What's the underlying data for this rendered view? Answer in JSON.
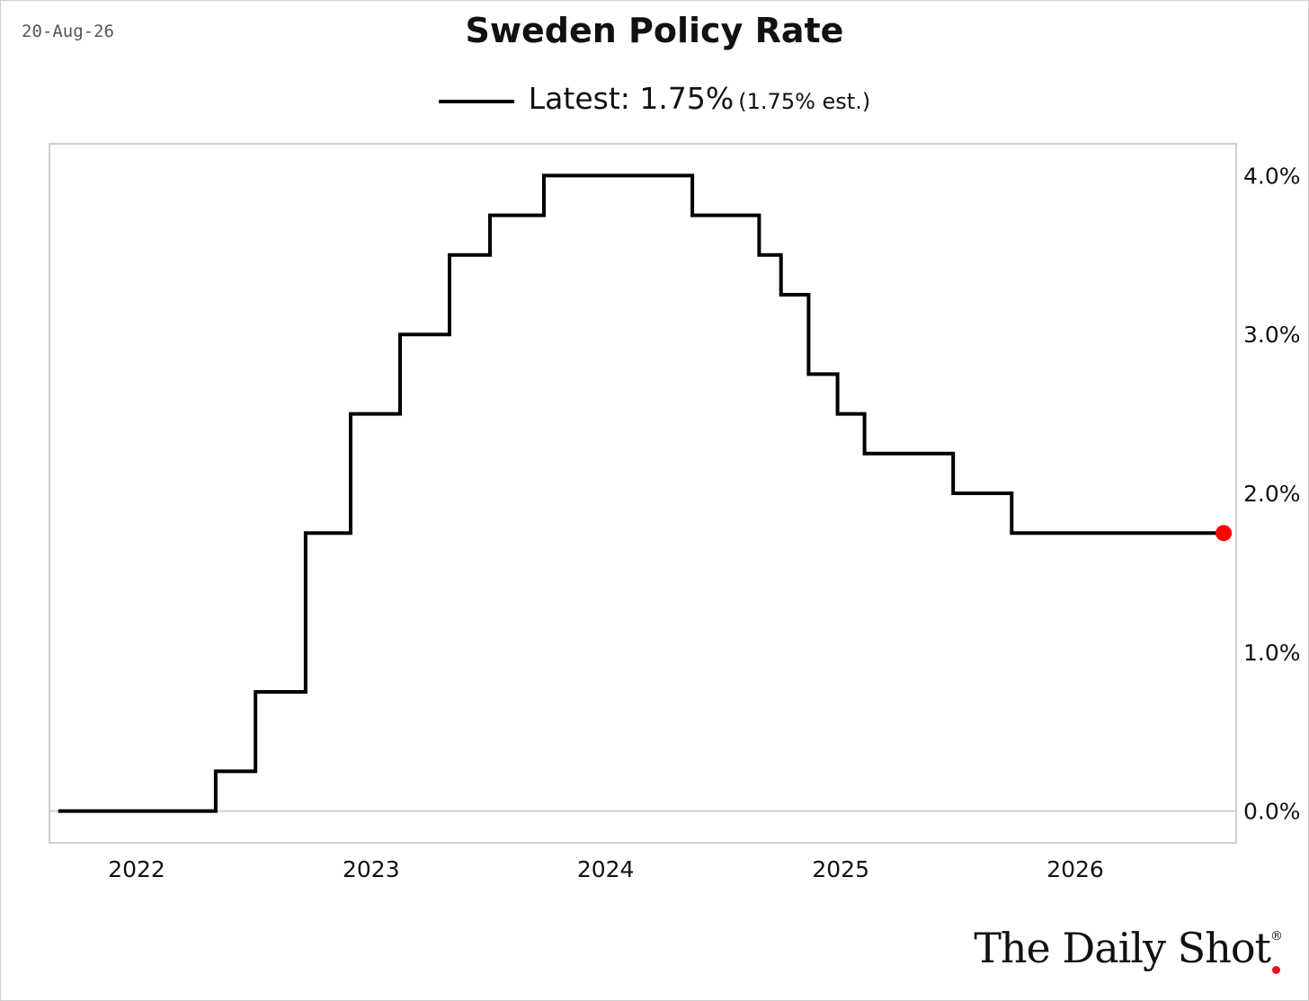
{
  "header": {
    "date": "20-Aug-26",
    "title": "Sweden Policy Rate"
  },
  "legend": {
    "label": "Latest: 1.75%",
    "estimate": "(1.75% est.)"
  },
  "branding": {
    "logo_text": "The Daily Shot",
    "registered_mark": "®"
  },
  "colors": {
    "line": "#000000",
    "latest_marker": "#ff0000",
    "zero_line": "#cfcfcf",
    "plot_border": "#cfcfcf",
    "logo_dot": "#e8141b"
  },
  "chart_data": {
    "type": "line",
    "step": true,
    "title": "Sweden Policy Rate",
    "xlabel": "",
    "ylabel": "",
    "y_axis_position": "right",
    "x_range": [
      "2021-09-01",
      "2026-09-15"
    ],
    "ylim": [
      -0.2,
      4.2
    ],
    "x_ticks": [
      {
        "label": "2022",
        "date": "2022-01-01"
      },
      {
        "label": "2023",
        "date": "2023-01-01"
      },
      {
        "label": "2024",
        "date": "2024-01-01"
      },
      {
        "label": "2025",
        "date": "2025-01-01"
      },
      {
        "label": "2026",
        "date": "2026-01-01"
      }
    ],
    "y_ticks": [
      {
        "label": "0.0%",
        "value": 0
      },
      {
        "label": "1.0%",
        "value": 1
      },
      {
        "label": "2.0%",
        "value": 2
      },
      {
        "label": "3.0%",
        "value": 3
      },
      {
        "label": "4.0%",
        "value": 4
      }
    ],
    "series": [
      {
        "step_points": [
          {
            "date": "2021-09-01",
            "value": 0.0
          },
          {
            "date": "2022-05-04",
            "value": 0.25
          },
          {
            "date": "2022-07-05",
            "value": 0.75
          },
          {
            "date": "2022-09-21",
            "value": 1.75
          },
          {
            "date": "2022-11-30",
            "value": 2.5
          },
          {
            "date": "2023-02-15",
            "value": 3.0
          },
          {
            "date": "2023-05-03",
            "value": 3.5
          },
          {
            "date": "2023-07-05",
            "value": 3.75
          },
          {
            "date": "2023-09-27",
            "value": 4.0
          },
          {
            "date": "2024-05-15",
            "value": 3.75
          },
          {
            "date": "2024-08-27",
            "value": 3.5
          },
          {
            "date": "2024-09-30",
            "value": 3.25
          },
          {
            "date": "2024-11-12",
            "value": 2.75
          },
          {
            "date": "2024-12-27",
            "value": 2.5
          },
          {
            "date": "2025-02-07",
            "value": 2.25
          },
          {
            "date": "2025-06-25",
            "value": 2.0
          },
          {
            "date": "2025-09-24",
            "value": 1.75
          }
        ],
        "end_date": "2026-08-20",
        "latest_value": 1.75
      }
    ],
    "zero_line": true,
    "grid": false,
    "legend_position": "top-center"
  }
}
